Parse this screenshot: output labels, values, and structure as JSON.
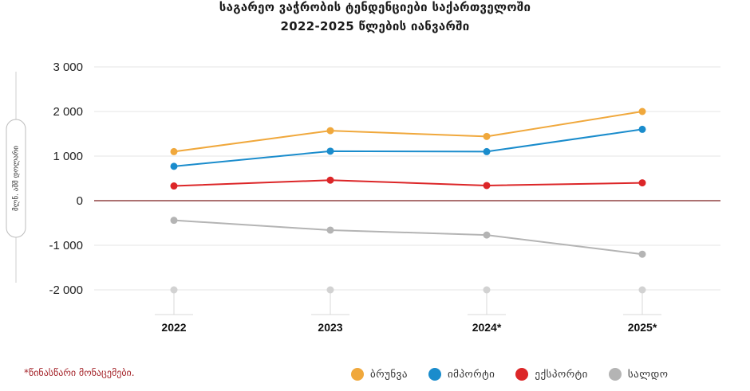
{
  "header": {
    "title_line1": "საგარეო ვაჭრობის ტენდენციები საქართველოში",
    "title_line2": "2022-2025 წლების იანვარში"
  },
  "footnote": "*წინასწარი მონაცემები.",
  "unit_label": "მლნ. აშშ დოლარი",
  "chart_data": {
    "type": "line",
    "categories": [
      "2022",
      "2023",
      "2024*",
      "2025*"
    ],
    "ylim": [
      -2000,
      3000
    ],
    "yticks": [
      3000,
      2000,
      1000,
      0,
      -1000,
      -2000
    ],
    "ytick_labels": [
      "3 000",
      "2 000",
      "1 000",
      "0",
      "-1 000",
      "-2 000"
    ],
    "ylabel": "მლნ. აშშ დოლარი",
    "grid": true,
    "legend_position": "bottom-right",
    "series": [
      {
        "name": "ბრუნვა",
        "color": "#f0a83c",
        "values": [
          1100,
          1570,
          1440,
          2000
        ]
      },
      {
        "name": "იმპორტი",
        "color": "#1a8ccc",
        "values": [
          770,
          1110,
          1100,
          1600
        ]
      },
      {
        "name": "ექსპორტი",
        "color": "#dc2628",
        "values": [
          330,
          460,
          340,
          400
        ]
      },
      {
        "name": "სალდო",
        "color": "#b4b4b4",
        "values": [
          -440,
          -660,
          -770,
          -1200
        ]
      }
    ]
  }
}
